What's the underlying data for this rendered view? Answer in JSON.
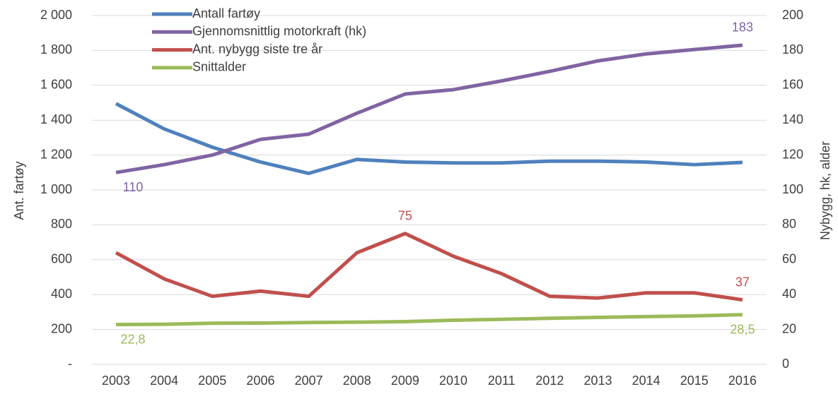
{
  "chart_data": {
    "type": "line",
    "categories": [
      "2003",
      "2004",
      "2005",
      "2006",
      "2007",
      "2008",
      "2009",
      "2010",
      "2011",
      "2012",
      "2013",
      "2014",
      "2015",
      "2016"
    ],
    "ylabel": "Ant. fartøy",
    "y2label": "Nybygg, hk, alder",
    "ylim": [
      0,
      2000
    ],
    "yticks": [
      {
        "value": 0,
        "label": "-"
      },
      200,
      400,
      600,
      800,
      {
        "value": 1000,
        "label": "1 000"
      },
      {
        "value": 1200,
        "label": "1 200"
      },
      {
        "value": 1400,
        "label": "1 400"
      },
      {
        "value": 1600,
        "label": "1 600"
      },
      {
        "value": 1800,
        "label": "1 800"
      },
      {
        "value": 2000,
        "label": "2 000"
      }
    ],
    "y2lim": [
      0,
      200
    ],
    "y2ticks": [
      0,
      20,
      40,
      60,
      80,
      100,
      120,
      140,
      160,
      180,
      200
    ],
    "grid": true,
    "legend": "upper left",
    "series": [
      {
        "name": "Antall fartøy",
        "color": "#4f81bd",
        "values": [
          1495,
          1350,
          1245,
          1160,
          1095,
          1175,
          1160,
          1155,
          1155,
          1165,
          1165,
          1160,
          1145,
          1158
        ]
      },
      {
        "name": "Gjennomsnittlig motorkraft (hk)",
        "color": "#8064a2",
        "axis": "y2",
        "values": [
          110,
          114.5,
          120,
          129,
          132,
          144,
          155,
          157.5,
          162.5,
          168,
          174,
          178,
          180.5,
          183
        ],
        "value_labels": [
          "110",
          null,
          null,
          null,
          null,
          null,
          null,
          null,
          null,
          null,
          null,
          null,
          null,
          "183"
        ]
      },
      {
        "name": "Ant. nybygg siste tre år",
        "color": "#c0504d",
        "axis": "y2",
        "values": [
          64,
          49,
          39,
          42,
          39,
          64,
          75,
          62,
          52,
          39,
          38,
          41,
          41,
          37
        ],
        "value_labels": [
          null,
          null,
          null,
          null,
          null,
          null,
          "75",
          null,
          null,
          null,
          null,
          null,
          null,
          "37"
        ]
      },
      {
        "name": "Snittalder",
        "color": "#9bbb59",
        "axis": "y2",
        "values": [
          22.8,
          23,
          23.6,
          23.7,
          24,
          24.2,
          24.5,
          25.3,
          25.8,
          26.4,
          26.9,
          27.4,
          27.8,
          28.5
        ],
        "value_labels": [
          "22,8",
          null,
          null,
          null,
          null,
          null,
          null,
          null,
          null,
          null,
          null,
          null,
          null,
          "28,5"
        ]
      }
    ]
  }
}
